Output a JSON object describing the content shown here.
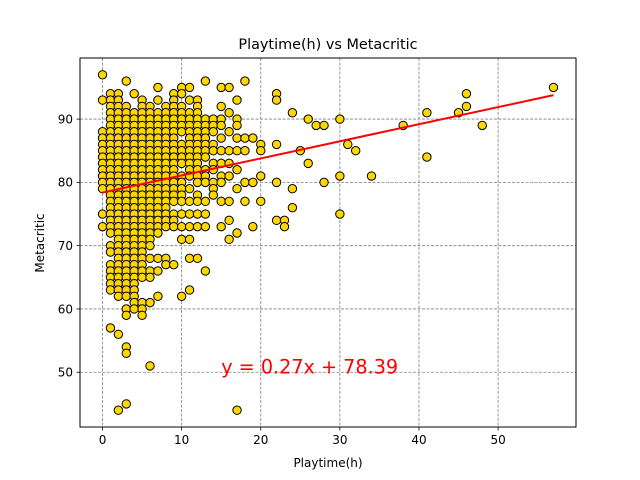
{
  "chart_data": {
    "type": "scatter",
    "title": "Playtime(h) vs Metacritic",
    "xlabel": "Playtime(h)",
    "ylabel": "Metacritic",
    "xlim": [
      -2.85,
      59.85
    ],
    "ylim": [
      41.35,
      99.65
    ],
    "xticks": [
      0,
      10,
      20,
      30,
      40,
      50
    ],
    "yticks": [
      50,
      60,
      70,
      80,
      90
    ],
    "grid": true,
    "grid_style": "dashed",
    "marker_color": "#ffd700",
    "marker_edge": "#000000",
    "regression": {
      "equation": "y = 0.27x + 78.39",
      "slope": 0.27,
      "intercept": 78.39,
      "x_range": [
        0,
        57
      ],
      "color": "#ff0000",
      "label_at": [
        15,
        50
      ]
    },
    "points": [
      [
        0,
        97
      ],
      [
        0,
        93
      ],
      [
        0,
        88
      ],
      [
        0,
        87
      ],
      [
        0,
        86
      ],
      [
        0,
        85
      ],
      [
        0,
        84
      ],
      [
        0,
        83
      ],
      [
        0,
        82
      ],
      [
        0,
        81
      ],
      [
        0,
        80
      ],
      [
        0,
        79
      ],
      [
        0,
        75
      ],
      [
        0,
        73
      ],
      [
        1,
        94
      ],
      [
        1,
        93
      ],
      [
        1,
        92
      ],
      [
        1,
        91
      ],
      [
        1,
        90
      ],
      [
        1,
        89
      ],
      [
        1,
        88
      ],
      [
        1,
        87
      ],
      [
        1,
        86
      ],
      [
        1,
        85
      ],
      [
        1,
        84
      ],
      [
        1,
        83
      ],
      [
        1,
        82
      ],
      [
        1,
        81
      ],
      [
        1,
        80
      ],
      [
        1,
        79
      ],
      [
        1,
        78
      ],
      [
        1,
        77
      ],
      [
        1,
        76
      ],
      [
        1,
        75
      ],
      [
        1,
        74
      ],
      [
        1,
        73
      ],
      [
        1,
        72
      ],
      [
        1,
        70
      ],
      [
        1,
        69
      ],
      [
        1,
        67
      ],
      [
        1,
        66
      ],
      [
        1,
        65
      ],
      [
        1,
        64
      ],
      [
        1,
        63
      ],
      [
        1,
        57
      ],
      [
        2,
        94
      ],
      [
        2,
        93
      ],
      [
        2,
        92
      ],
      [
        2,
        91
      ],
      [
        2,
        90
      ],
      [
        2,
        89
      ],
      [
        2,
        88
      ],
      [
        2,
        87
      ],
      [
        2,
        86
      ],
      [
        2,
        85
      ],
      [
        2,
        84
      ],
      [
        2,
        83
      ],
      [
        2,
        82
      ],
      [
        2,
        81
      ],
      [
        2,
        80
      ],
      [
        2,
        79
      ],
      [
        2,
        78
      ],
      [
        2,
        77
      ],
      [
        2,
        76
      ],
      [
        2,
        75
      ],
      [
        2,
        74
      ],
      [
        2,
        73
      ],
      [
        2,
        72
      ],
      [
        2,
        71
      ],
      [
        2,
        70
      ],
      [
        2,
        69
      ],
      [
        2,
        68
      ],
      [
        2,
        67
      ],
      [
        2,
        66
      ],
      [
        2,
        65
      ],
      [
        2,
        64
      ],
      [
        2,
        63
      ],
      [
        2,
        62
      ],
      [
        2,
        56
      ],
      [
        2,
        44
      ],
      [
        3,
        96
      ],
      [
        3,
        92
      ],
      [
        3,
        91
      ],
      [
        3,
        90
      ],
      [
        3,
        89
      ],
      [
        3,
        88
      ],
      [
        3,
        87
      ],
      [
        3,
        86
      ],
      [
        3,
        85
      ],
      [
        3,
        84
      ],
      [
        3,
        83
      ],
      [
        3,
        82
      ],
      [
        3,
        81
      ],
      [
        3,
        80
      ],
      [
        3,
        79
      ],
      [
        3,
        78
      ],
      [
        3,
        77
      ],
      [
        3,
        76
      ],
      [
        3,
        75
      ],
      [
        3,
        74
      ],
      [
        3,
        73
      ],
      [
        3,
        72
      ],
      [
        3,
        71
      ],
      [
        3,
        70
      ],
      [
        3,
        69
      ],
      [
        3,
        68
      ],
      [
        3,
        67
      ],
      [
        3,
        66
      ],
      [
        3,
        65
      ],
      [
        3,
        64
      ],
      [
        3,
        63
      ],
      [
        3,
        62
      ],
      [
        3,
        60
      ],
      [
        3,
        59
      ],
      [
        3,
        54
      ],
      [
        3,
        53
      ],
      [
        3,
        45
      ],
      [
        4,
        94
      ],
      [
        4,
        91
      ],
      [
        4,
        90
      ],
      [
        4,
        89
      ],
      [
        4,
        88
      ],
      [
        4,
        87
      ],
      [
        4,
        86
      ],
      [
        4,
        85
      ],
      [
        4,
        84
      ],
      [
        4,
        83
      ],
      [
        4,
        82
      ],
      [
        4,
        81
      ],
      [
        4,
        80
      ],
      [
        4,
        79
      ],
      [
        4,
        78
      ],
      [
        4,
        77
      ],
      [
        4,
        76
      ],
      [
        4,
        75
      ],
      [
        4,
        74
      ],
      [
        4,
        73
      ],
      [
        4,
        72
      ],
      [
        4,
        71
      ],
      [
        4,
        70
      ],
      [
        4,
        69
      ],
      [
        4,
        68
      ],
      [
        4,
        67
      ],
      [
        4,
        66
      ],
      [
        4,
        65
      ],
      [
        4,
        64
      ],
      [
        4,
        63
      ],
      [
        4,
        62
      ],
      [
        4,
        61
      ],
      [
        4,
        60
      ],
      [
        5,
        93
      ],
      [
        5,
        92
      ],
      [
        5,
        91
      ],
      [
        5,
        90
      ],
      [
        5,
        89
      ],
      [
        5,
        88
      ],
      [
        5,
        87
      ],
      [
        5,
        86
      ],
      [
        5,
        85
      ],
      [
        5,
        84
      ],
      [
        5,
        83
      ],
      [
        5,
        82
      ],
      [
        5,
        81
      ],
      [
        5,
        80
      ],
      [
        5,
        79
      ],
      [
        5,
        78
      ],
      [
        5,
        77
      ],
      [
        5,
        76
      ],
      [
        5,
        75
      ],
      [
        5,
        74
      ],
      [
        5,
        73
      ],
      [
        5,
        72
      ],
      [
        5,
        71
      ],
      [
        5,
        70
      ],
      [
        5,
        69
      ],
      [
        5,
        68
      ],
      [
        5,
        67
      ],
      [
        5,
        66
      ],
      [
        5,
        65
      ],
      [
        5,
        61
      ],
      [
        5,
        60
      ],
      [
        5,
        59
      ],
      [
        6,
        92
      ],
      [
        6,
        91
      ],
      [
        6,
        90
      ],
      [
        6,
        89
      ],
      [
        6,
        88
      ],
      [
        6,
        87
      ],
      [
        6,
        86
      ],
      [
        6,
        85
      ],
      [
        6,
        84
      ],
      [
        6,
        83
      ],
      [
        6,
        82
      ],
      [
        6,
        81
      ],
      [
        6,
        80
      ],
      [
        6,
        79
      ],
      [
        6,
        78
      ],
      [
        6,
        77
      ],
      [
        6,
        76
      ],
      [
        6,
        75
      ],
      [
        6,
        74
      ],
      [
        6,
        73
      ],
      [
        6,
        72
      ],
      [
        6,
        71
      ],
      [
        6,
        70
      ],
      [
        6,
        68
      ],
      [
        6,
        66
      ],
      [
        6,
        65
      ],
      [
        6,
        61
      ],
      [
        6,
        51
      ],
      [
        7,
        95
      ],
      [
        7,
        93
      ],
      [
        7,
        91
      ],
      [
        7,
        90
      ],
      [
        7,
        89
      ],
      [
        7,
        88
      ],
      [
        7,
        87
      ],
      [
        7,
        86
      ],
      [
        7,
        85
      ],
      [
        7,
        84
      ],
      [
        7,
        83
      ],
      [
        7,
        82
      ],
      [
        7,
        81
      ],
      [
        7,
        80
      ],
      [
        7,
        79
      ],
      [
        7,
        78
      ],
      [
        7,
        77
      ],
      [
        7,
        76
      ],
      [
        7,
        75
      ],
      [
        7,
        74
      ],
      [
        7,
        73
      ],
      [
        7,
        72
      ],
      [
        7,
        68
      ],
      [
        7,
        66
      ],
      [
        7,
        62
      ],
      [
        8,
        92
      ],
      [
        8,
        91
      ],
      [
        8,
        90
      ],
      [
        8,
        89
      ],
      [
        8,
        88
      ],
      [
        8,
        87
      ],
      [
        8,
        86
      ],
      [
        8,
        85
      ],
      [
        8,
        84
      ],
      [
        8,
        83
      ],
      [
        8,
        82
      ],
      [
        8,
        81
      ],
      [
        8,
        80
      ],
      [
        8,
        79
      ],
      [
        8,
        78
      ],
      [
        8,
        77
      ],
      [
        8,
        76
      ],
      [
        8,
        75
      ],
      [
        8,
        74
      ],
      [
        8,
        73
      ],
      [
        8,
        68
      ],
      [
        8,
        67
      ],
      [
        9,
        94
      ],
      [
        9,
        93
      ],
      [
        9,
        92
      ],
      [
        9,
        91
      ],
      [
        9,
        90
      ],
      [
        9,
        89
      ],
      [
        9,
        88
      ],
      [
        9,
        87
      ],
      [
        9,
        86
      ],
      [
        9,
        85
      ],
      [
        9,
        84
      ],
      [
        9,
        83
      ],
      [
        9,
        82
      ],
      [
        9,
        81
      ],
      [
        9,
        80
      ],
      [
        9,
        79
      ],
      [
        9,
        78
      ],
      [
        9,
        77
      ],
      [
        9,
        75
      ],
      [
        9,
        74
      ],
      [
        9,
        73
      ],
      [
        9,
        67
      ],
      [
        10,
        95
      ],
      [
        10,
        94
      ],
      [
        10,
        92
      ],
      [
        10,
        91
      ],
      [
        10,
        90
      ],
      [
        10,
        89
      ],
      [
        10,
        88
      ],
      [
        10,
        86
      ],
      [
        10,
        85
      ],
      [
        10,
        84
      ],
      [
        10,
        83
      ],
      [
        10,
        81
      ],
      [
        10,
        80
      ],
      [
        10,
        79
      ],
      [
        10,
        78
      ],
      [
        10,
        77
      ],
      [
        10,
        75
      ],
      [
        10,
        73
      ],
      [
        10,
        71
      ],
      [
        10,
        62
      ],
      [
        11,
        95
      ],
      [
        11,
        93
      ],
      [
        11,
        91
      ],
      [
        11,
        90
      ],
      [
        11,
        89
      ],
      [
        11,
        88
      ],
      [
        11,
        87
      ],
      [
        11,
        86
      ],
      [
        11,
        85
      ],
      [
        11,
        84
      ],
      [
        11,
        83
      ],
      [
        11,
        82
      ],
      [
        11,
        81
      ],
      [
        11,
        79
      ],
      [
        11,
        77
      ],
      [
        11,
        75
      ],
      [
        11,
        73
      ],
      [
        11,
        71
      ],
      [
        11,
        68
      ],
      [
        11,
        63
      ],
      [
        12,
        93
      ],
      [
        12,
        92
      ],
      [
        12,
        91
      ],
      [
        12,
        90
      ],
      [
        12,
        89
      ],
      [
        12,
        88
      ],
      [
        12,
        87
      ],
      [
        12,
        86
      ],
      [
        12,
        85
      ],
      [
        12,
        84
      ],
      [
        12,
        83
      ],
      [
        12,
        82
      ],
      [
        12,
        81
      ],
      [
        12,
        80
      ],
      [
        12,
        78
      ],
      [
        12,
        77
      ],
      [
        12,
        75
      ],
      [
        12,
        73
      ],
      [
        12,
        68
      ],
      [
        13,
        96
      ],
      [
        13,
        90
      ],
      [
        13,
        89
      ],
      [
        13,
        88
      ],
      [
        13,
        87
      ],
      [
        13,
        86
      ],
      [
        13,
        85
      ],
      [
        13,
        84
      ],
      [
        13,
        82
      ],
      [
        13,
        81
      ],
      [
        13,
        80
      ],
      [
        13,
        77
      ],
      [
        13,
        75
      ],
      [
        13,
        73
      ],
      [
        13,
        66
      ],
      [
        14,
        90
      ],
      [
        14,
        89
      ],
      [
        14,
        88
      ],
      [
        14,
        86
      ],
      [
        14,
        85
      ],
      [
        14,
        83
      ],
      [
        14,
        82
      ],
      [
        14,
        80
      ],
      [
        14,
        79
      ],
      [
        14,
        78
      ],
      [
        15,
        95
      ],
      [
        15,
        92
      ],
      [
        15,
        90
      ],
      [
        15,
        89
      ],
      [
        15,
        87
      ],
      [
        15,
        85
      ],
      [
        15,
        83
      ],
      [
        15,
        81
      ],
      [
        15,
        80
      ],
      [
        15,
        77
      ],
      [
        15,
        73
      ],
      [
        16,
        95
      ],
      [
        16,
        91
      ],
      [
        16,
        88
      ],
      [
        16,
        85
      ],
      [
        16,
        83
      ],
      [
        16,
        81
      ],
      [
        16,
        77
      ],
      [
        16,
        74
      ],
      [
        16,
        71
      ],
      [
        17,
        93
      ],
      [
        17,
        90
      ],
      [
        17,
        89
      ],
      [
        17,
        87
      ],
      [
        17,
        85
      ],
      [
        17,
        82
      ],
      [
        17,
        79
      ],
      [
        17,
        72
      ],
      [
        17,
        44
      ],
      [
        18,
        96
      ],
      [
        18,
        87
      ],
      [
        18,
        85
      ],
      [
        18,
        80
      ],
      [
        18,
        77
      ],
      [
        19,
        87
      ],
      [
        19,
        80
      ],
      [
        19,
        73
      ],
      [
        20,
        86
      ],
      [
        20,
        85
      ],
      [
        20,
        81
      ],
      [
        20,
        77
      ],
      [
        22,
        94
      ],
      [
        22,
        93
      ],
      [
        22,
        86
      ],
      [
        22,
        80
      ],
      [
        22,
        74
      ],
      [
        23,
        74
      ],
      [
        23,
        73
      ],
      [
        24,
        91
      ],
      [
        24,
        79
      ],
      [
        24,
        76
      ],
      [
        25,
        85
      ],
      [
        26,
        90
      ],
      [
        26,
        83
      ],
      [
        27,
        89
      ],
      [
        28,
        89
      ],
      [
        28,
        80
      ],
      [
        30,
        90
      ],
      [
        30,
        81
      ],
      [
        30,
        75
      ],
      [
        31,
        86
      ],
      [
        32,
        85
      ],
      [
        34,
        81
      ],
      [
        38,
        89
      ],
      [
        41,
        91
      ],
      [
        41,
        84
      ],
      [
        45,
        91
      ],
      [
        46,
        94
      ],
      [
        46,
        92
      ],
      [
        48,
        89
      ],
      [
        57,
        95
      ]
    ]
  }
}
